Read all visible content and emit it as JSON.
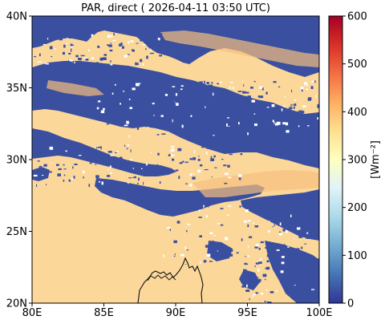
{
  "title": "PAR, direct ( 2026-04-11 03:50 UTC)",
  "map": {
    "lon_range": [
      80,
      100
    ],
    "lat_range": [
      20,
      40
    ],
    "x_ticks": [
      "80E",
      "85E",
      "90E",
      "95E",
      "100E"
    ],
    "y_ticks": [
      "40N",
      "35N",
      "30N",
      "25N",
      "20N"
    ]
  },
  "colorbar": {
    "label": "[Wm⁻²]",
    "range": [
      0,
      600
    ],
    "ticks": [
      "600",
      "500",
      "400",
      "300",
      "200",
      "100",
      "0"
    ],
    "colormap": "RdYlBu_r",
    "colors": [
      "#313695",
      "#4575b4",
      "#74add1",
      "#abd9e9",
      "#e0f3f8",
      "#ffffbf",
      "#fee090",
      "#fdae61",
      "#f46d43",
      "#d73027",
      "#a50026"
    ]
  },
  "field": {
    "clear_sky_color": "#fbd79a",
    "cloud_color": "#3a4fa0"
  }
}
